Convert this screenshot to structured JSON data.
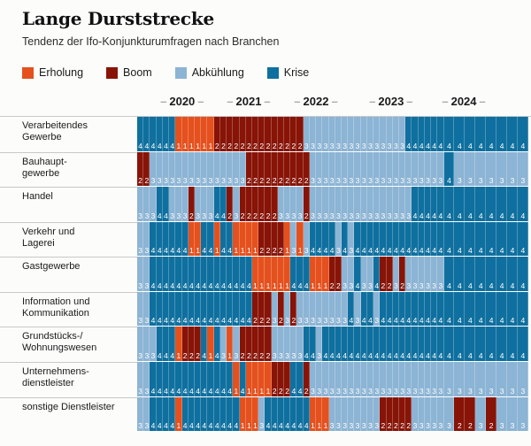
{
  "title": "Lange Durststrecke",
  "subtitle": "Tendenz der Ifo-Konjunkturumfragen nach Branchen",
  "legend": [
    {
      "label": "Erholung",
      "color": "#e4511e"
    },
    {
      "label": "Boom",
      "color": "#871407"
    },
    {
      "label": "Abkühlung",
      "color": "#8cb4d4"
    },
    {
      "label": "Krise",
      "color": "#0f709f"
    }
  ],
  "years": [
    "2020",
    "2021",
    "2022",
    "2023",
    "2024"
  ],
  "chart_data": {
    "type": "heatmap",
    "title": "Lange Durststrecke",
    "subtitle": "Tendenz der Ifo-Konjunkturumfragen nach Branchen",
    "x_axis_years": [
      "2020",
      "2021",
      "2022",
      "2023",
      "2024"
    ],
    "value_legend": {
      "1": "Erholung",
      "2": "Boom",
      "3": "Abkühlung",
      "4": "Krise"
    },
    "colors": {
      "1": "#e4511e",
      "2": "#871407",
      "3": "#8cb4d4",
      "4": "#0f709f"
    },
    "narrow_cols": 48,
    "wide_cols": 8,
    "rows": [
      {
        "label": [
          "Verarbeitendes",
          "Gewerbe"
        ],
        "values": "44444411111122222222222222333333333333333344444444444444"
      },
      {
        "label": [
          "Bauhaupt-",
          "gewerbe"
        ],
        "values": "22333333333333333222222222233333333333333333333343333333"
      },
      {
        "label": [
          "Handel"
        ],
        "values": "33344333233344232222223333233333333333333334444444444444"
      },
      {
        "label": [
          "Verkehr und",
          "Lagerei"
        ],
        "values": "33444444114414411112222131344443434444444444444444444444"
      },
      {
        "label": [
          "Gastgewerbe"
        ],
        "values": "33444444444444444411111144411122334334223233333344444444"
      },
      {
        "label": [
          "Information und",
          "Kommunikation"
        ],
        "values": "33444444444444444422232323333333343443444444444444444444"
      },
      {
        "label": [
          "Grundstücks-/",
          "Wohnungswesen"
        ],
        "values": "33344412224143132222233333443444444444444444444444444444"
      },
      {
        "label": [
          "Unternehmens-",
          "dienstleister"
        ],
        "values": "33444444444444414111122244233333333333333333333333333333"
      },
      {
        "label": [
          "sonstige Dienstleister"
        ],
        "values": "33444414444444441113444444411133333333222223333332232333"
      }
    ]
  }
}
